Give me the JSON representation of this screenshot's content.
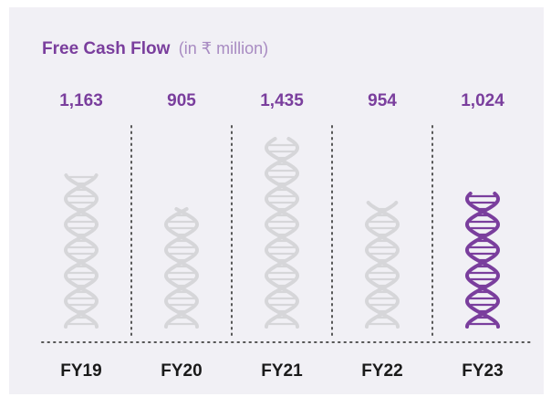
{
  "chart_data": {
    "type": "pictogram",
    "title": "Free Cash Flow",
    "subtitle": "(in ₹ million)",
    "categories": [
      "FY19",
      "FY20",
      "FY21",
      "FY22",
      "FY23"
    ],
    "values": [
      1163,
      905,
      1435,
      954,
      1024
    ],
    "value_labels": [
      "1,163",
      "905",
      "1,435",
      "954",
      "1,024"
    ],
    "colors": [
      "#d6d6d9",
      "#d6d6d9",
      "#d6d6d9",
      "#d6d6d9",
      "#7a3e9d"
    ]
  }
}
